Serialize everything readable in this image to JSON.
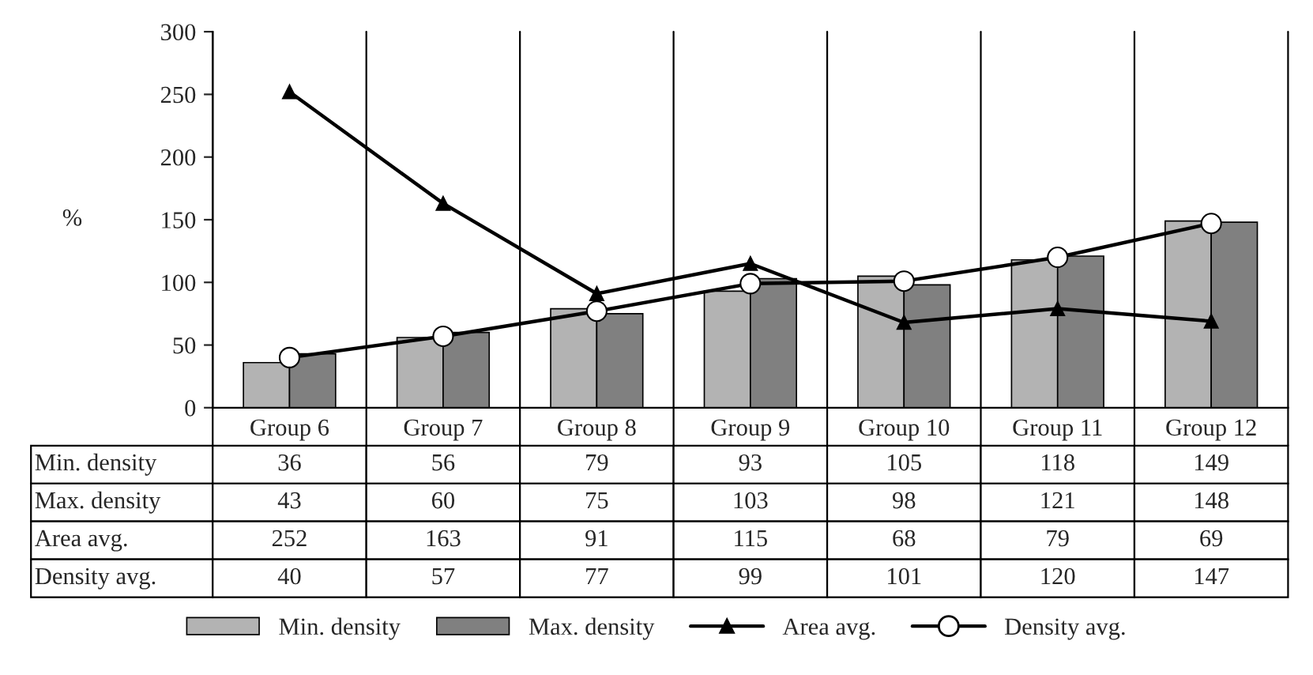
{
  "chart_data": {
    "type": "bar",
    "ylabel": "%",
    "categories": [
      "Group 6",
      "Group 7",
      "Group 8",
      "Group 9",
      "Group 10",
      "Group 11",
      "Group 12"
    ],
    "series": [
      {
        "name": "Min. density",
        "color": "#b3b3b3",
        "values": [
          36,
          56,
          79,
          93,
          105,
          118,
          149
        ]
      },
      {
        "name": "Max. density",
        "color": "#808080",
        "values": [
          43,
          60,
          75,
          103,
          98,
          121,
          148
        ]
      },
      {
        "name": "Area avg.",
        "type": "line",
        "color": "#000000",
        "marker": "triangle",
        "values": [
          252,
          163,
          91,
          115,
          68,
          79,
          69
        ]
      },
      {
        "name": "Density avg.",
        "type": "line",
        "color": "#000000",
        "marker": "circle",
        "values": [
          40,
          57,
          77,
          99,
          101,
          120,
          147
        ]
      }
    ],
    "ylim": [
      0,
      300
    ],
    "yticks": [
      0,
      50,
      100,
      150,
      200,
      250,
      300
    ],
    "grid": "x",
    "legend": "bottom",
    "data_labels": true
  }
}
